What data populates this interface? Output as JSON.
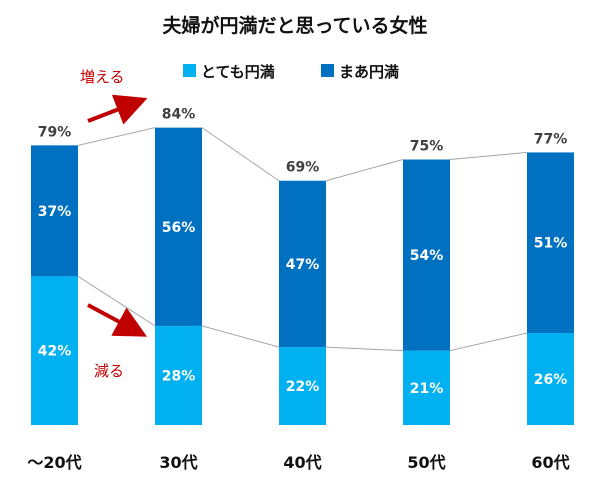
{
  "chart_data": {
    "type": "bar",
    "stacked": true,
    "title": "夫婦が円満だと思っている女性",
    "categories": [
      "～20代",
      "30代",
      "40代",
      "50代",
      "60代"
    ],
    "series": [
      {
        "name": "とても円満",
        "color": "#00b0f0",
        "values": [
          42,
          28,
          22,
          21,
          26
        ],
        "labels": [
          "42%",
          "28%",
          "22%",
          "21%",
          "26%"
        ]
      },
      {
        "name": "まあ円満",
        "color": "#0070c0",
        "values": [
          37,
          56,
          47,
          54,
          51
        ],
        "labels": [
          "37%",
          "56%",
          "47%",
          "54%",
          "51%"
        ]
      }
    ],
    "totals": [
      79,
      84,
      69,
      75,
      77
    ],
    "total_labels": [
      "79%",
      "84%",
      "69%",
      "75%",
      "77%"
    ],
    "ylim": [
      0,
      100
    ],
    "grid": false,
    "legend": "top",
    "annotations": [
      {
        "text": "増える",
        "color": "#c00000",
        "arrow": "up"
      },
      {
        "text": "減る",
        "color": "#c00000",
        "arrow": "down"
      }
    ],
    "connector_color": "#a6a6a6"
  }
}
